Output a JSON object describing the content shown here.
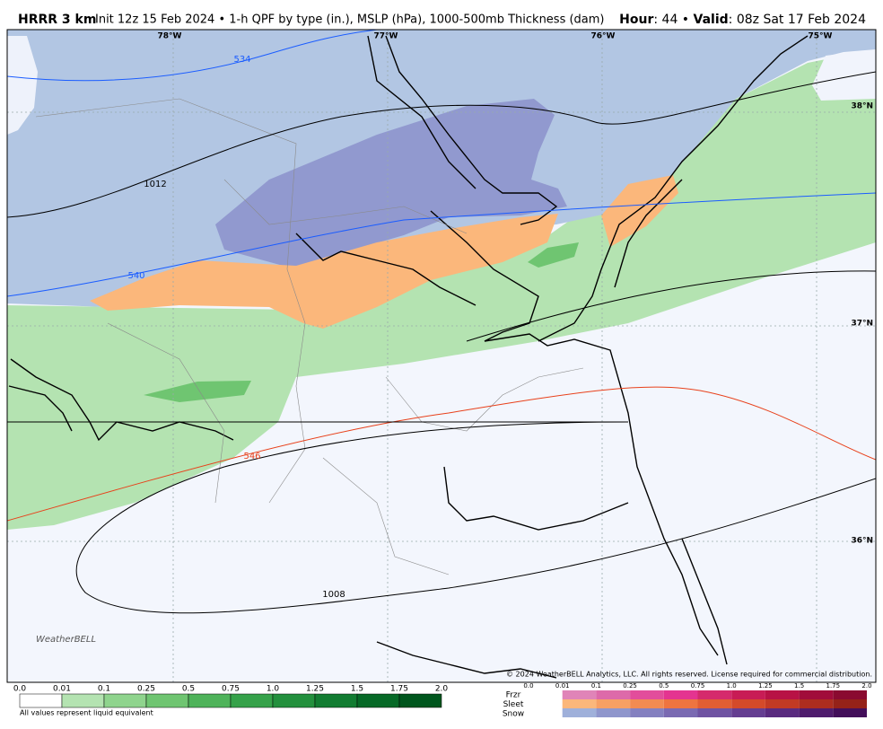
{
  "header": {
    "model": "HRRR 3 km",
    "description": "Init 12z 15 Feb 2024 • 1-h QPF by type (in.), MSLP (hPa), 1000-500mb Thickness (dam)",
    "hour_label": "Hour",
    "hour": ": 44 •",
    "valid_label": "Valid",
    "valid": ": 08z Sat 17 Feb 2024"
  },
  "map": {
    "longitudes": [
      "78°W",
      "77°W",
      "76°W",
      "75°W"
    ],
    "latitudes": [
      "38°N",
      "37°N",
      "36°N"
    ],
    "thickness_labels": [
      "534",
      "540",
      "546"
    ],
    "pressure_labels": [
      "1012",
      "1008"
    ],
    "logo": "WeatherBELL",
    "copyright": "© 2024 WeatherBELL Analytics, LLC. All rights reserved. License required for commercial distribution."
  },
  "legend": {
    "qpf_ticks": [
      "0.0",
      "0.01",
      "0.1",
      "0.25",
      "0.5",
      "0.75",
      "1.0",
      "1.25",
      "1.5",
      "1.75",
      "2.0"
    ],
    "note": "All values represent liquid equivalent",
    "types": [
      "Frzr",
      "Sleet",
      "Snow"
    ],
    "type_ticks": [
      "0.0",
      "0.01",
      "0.1",
      "0.25",
      "0.5",
      "0.75",
      "1.0",
      "1.25",
      "1.5",
      "1.75",
      "2.0"
    ]
  }
}
